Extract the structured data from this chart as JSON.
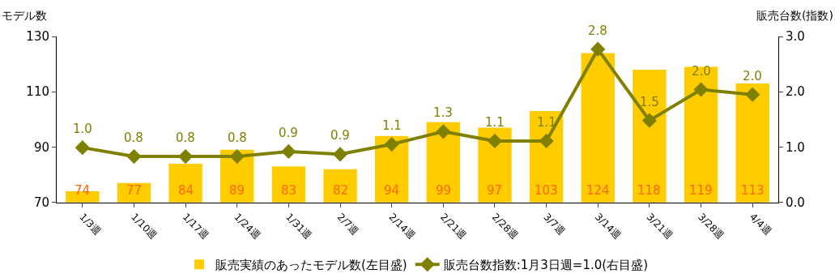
{
  "chart_data": {
    "type": "bar",
    "categories": [
      "1/3週",
      "1/10週",
      "1/17週",
      "1/24週",
      "1/31週",
      "2/7週",
      "2/14週",
      "2/21週",
      "2/28週",
      "3/7週",
      "3/14週",
      "3/21週",
      "3/28週",
      "4/4週"
    ],
    "series": [
      {
        "name": "販売実績のあったモデル数(左目盛)",
        "color": "#ffcc00",
        "values": [
          74,
          77,
          84,
          89,
          83,
          82,
          94,
          99,
          97,
          103,
          124,
          118,
          119,
          113
        ]
      },
      {
        "name": "販売台数指数:1月3日週=1.0(右目盛)",
        "type": "line",
        "axis": "y2",
        "color": "#808000",
        "marker": "diamond",
        "values": [
          0.99,
          0.83,
          0.83,
          0.83,
          0.92,
          0.87,
          1.05,
          1.28,
          1.11,
          1.11,
          2.77,
          1.48,
          2.04,
          1.95
        ],
        "value_labels": [
          "1.0",
          "0.8",
          "0.8",
          "0.8",
          "0.9",
          "0.9",
          "1.1",
          "1.3",
          "1.1",
          "1.1",
          "2.8",
          "1.5",
          "2.0",
          "2.0"
        ]
      }
    ],
    "ylabel": "モデル数",
    "y2label": "販売台数(指数)",
    "ylim": [
      70,
      130
    ],
    "yticks": [
      70,
      90,
      110,
      130
    ],
    "y2lim": [
      0,
      3
    ],
    "y2ticks": [
      {
        "value": 0,
        "label": "0.0"
      },
      {
        "value": 1,
        "label": "1.0"
      },
      {
        "value": 2,
        "label": "2.0"
      },
      {
        "value": 3,
        "label": "3.0"
      }
    ],
    "data_labels": true,
    "legend": "bottom"
  }
}
